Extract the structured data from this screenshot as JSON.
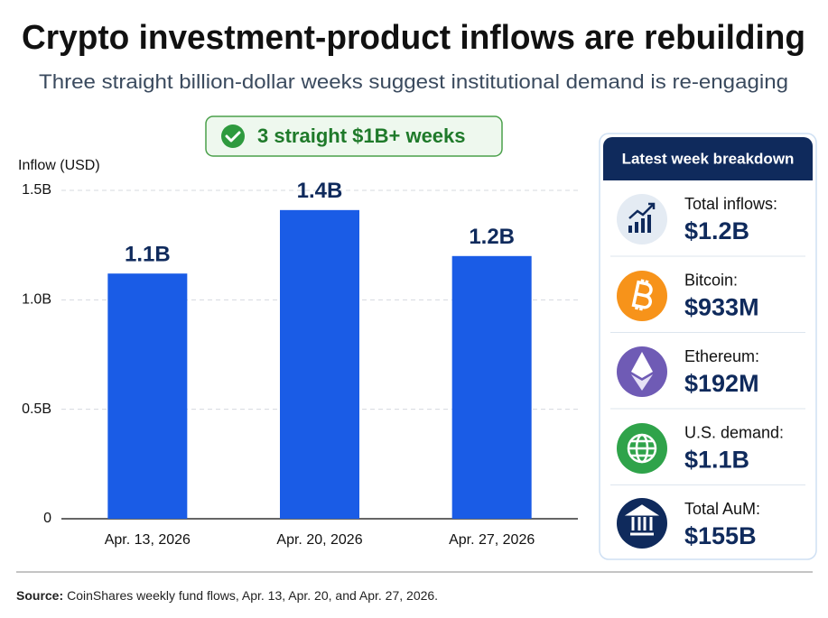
{
  "title": "Crypto investment-product inflows are rebuilding",
  "subtitle": "Three straight billion-dollar weeks suggest institutional demand is re-engaging",
  "badge": "3 straight $1B+ weeks",
  "chart_data": {
    "type": "bar",
    "y_label": "Inflow (USD)",
    "categories": [
      "Apr. 13, 2026",
      "Apr. 20, 2026",
      "Apr. 27, 2026"
    ],
    "values": [
      1.12,
      1.41,
      1.2
    ],
    "value_labels": [
      "1.1B",
      "1.4B",
      "1.2B"
    ],
    "color": "#1a5ce6",
    "ylim": [
      0,
      1.5
    ],
    "yticks": [
      0,
      {
        "value": 0.5,
        "label": "0.5B"
      },
      {
        "value": 1,
        "label": "1.0B"
      },
      {
        "value": 1.5,
        "label": "1.5B"
      }
    ],
    "grid": true
  },
  "panel": {
    "title": "Latest week breakdown",
    "items": [
      {
        "label": "Total inflows:",
        "value": "$1.2B"
      },
      {
        "label": "Bitcoin:",
        "value": "$933M"
      },
      {
        "label": "Ethereum:",
        "value": "$192M"
      },
      {
        "label": "U.S. demand:",
        "value": "$1.1B"
      },
      {
        "label": "Total AuM:",
        "value": "$155B"
      }
    ]
  },
  "source": {
    "label": "Source:",
    "text": "CoinShares weekly fund flows, Apr. 13, Apr. 20, and Apr. 27, 2026."
  }
}
